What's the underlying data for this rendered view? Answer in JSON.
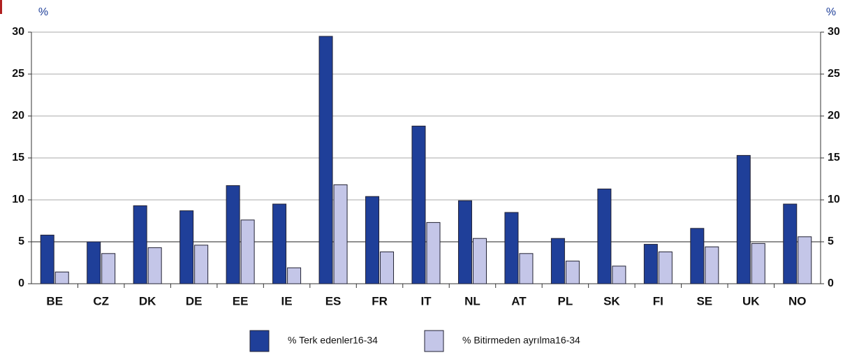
{
  "chart_data": {
    "type": "bar",
    "y_unit": "%",
    "y2_unit": "%",
    "categories": [
      "BE",
      "CZ",
      "DK",
      "DE",
      "EE",
      "IE",
      "ES",
      "FR",
      "IT",
      "NL",
      "AT",
      "PL",
      "SK",
      "FI",
      "SE",
      "UK",
      "NO"
    ],
    "series": [
      {
        "name": "% Terk edenler16-34",
        "color": "#1f3f99",
        "values": [
          5.8,
          5.0,
          9.3,
          8.7,
          11.7,
          9.5,
          29.5,
          10.4,
          18.8,
          9.9,
          8.5,
          5.4,
          11.3,
          4.7,
          6.6,
          15.3,
          9.5
        ]
      },
      {
        "name": "% Bitirmeden ayrılma16-34",
        "color": "#c4c6e8",
        "values": [
          1.4,
          3.6,
          4.3,
          4.6,
          7.6,
          1.9,
          11.8,
          3.8,
          7.3,
          5.4,
          3.6,
          2.7,
          2.1,
          3.8,
          4.4,
          4.8,
          5.6
        ]
      }
    ],
    "ylim": [
      0,
      30
    ],
    "yticks": [
      0,
      5,
      10,
      15,
      20,
      25,
      30
    ],
    "y2lim": [
      0,
      30
    ],
    "y2ticks": [
      0,
      5,
      10,
      15,
      20,
      25,
      30
    ],
    "grid": true,
    "legend": "bottom"
  }
}
